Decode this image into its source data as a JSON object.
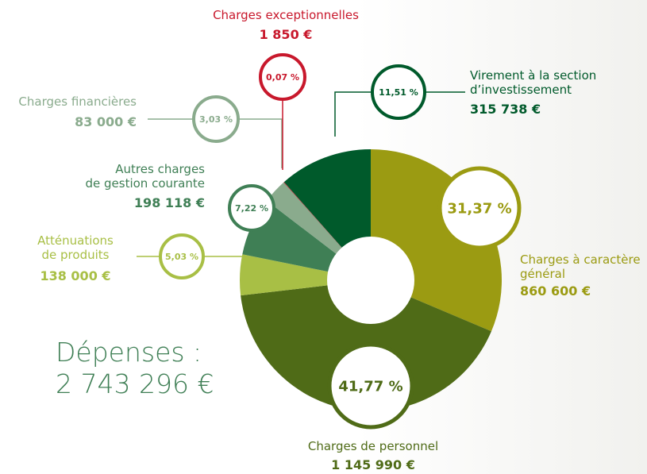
{
  "chart_data": {
    "type": "pie",
    "title": "Dépenses :",
    "total": "2 743 296 €",
    "categories": [
      "Charges à caractère\ngénéral",
      "Charges de personnel",
      "Atténuations\nde produits",
      "Autres charges\nde gestion courante",
      "Charges financières",
      "Charges exceptionnelles",
      "Virement à la section\nd’investissement"
    ],
    "values": [
      860600,
      1145990,
      138000,
      198118,
      83000,
      1850,
      315738
    ],
    "value_labels": [
      "860 600 €",
      "1 145 990 €",
      "138 000 €",
      "198 118 €",
      "83 000 €",
      "1 850 €",
      "315 738 €"
    ],
    "percent_labels": [
      "31,37 %",
      "41,77 %",
      "5,03 %",
      "7,22 %",
      "3,03 %",
      "0,07 %",
      "11,51 %"
    ],
    "colors": [
      "#9b9b12",
      "#4f6b17",
      "#a8bf45",
      "#3f7f55",
      "#8aab8d",
      "#c8182c",
      "#005a2b"
    ]
  }
}
